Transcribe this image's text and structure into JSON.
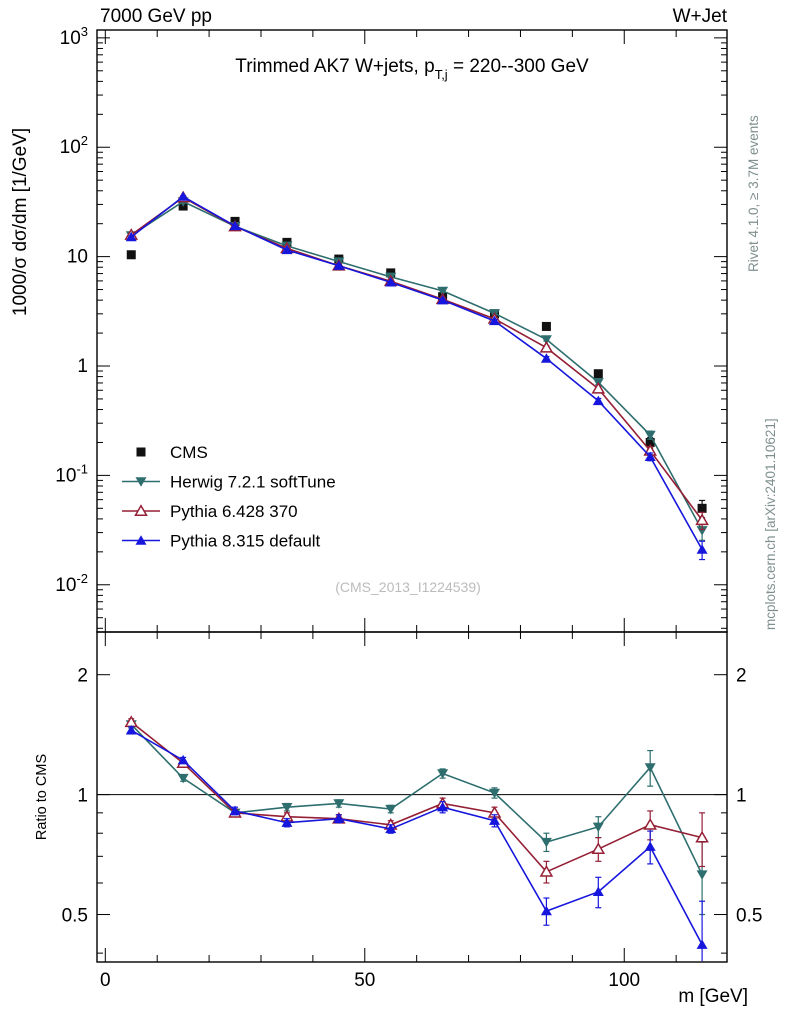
{
  "header": {
    "beam": "7000 GeV pp",
    "process": "W+Jet"
  },
  "side_labels": {
    "rivet": "Rivet 4.1.0, ≥ 3.7M events",
    "mcplots": "mcplots.cern.ch [arXiv:2401.10621]"
  },
  "watermark": "(CMS_2013_I1224539)",
  "chart_data": {
    "type": "line",
    "title": "Trimmed AK7 W+jets, p_{T,j} = 220--300 GeV",
    "title_parts": {
      "pre": "Trimmed AK7 W+jets, p",
      "sub": "T,j",
      "post": " = 220--300 GeV"
    },
    "xlabel": "m [GeV]",
    "ylabel": "1000/σ  dσ/dm [1/GeV]",
    "ratio_ylabel": "Ratio to CMS",
    "y_log": true,
    "ratio_log": true,
    "xlim": [
      -1.6,
      119.8
    ],
    "ylim": [
      0.0037,
      1180
    ],
    "ratio_ylim": [
      0.38,
      2.56
    ],
    "x_major_ticks": [
      0,
      50,
      100
    ],
    "x_minor_step": 10,
    "y_tick_exponents": [
      3,
      2,
      1,
      0,
      -1,
      -2
    ],
    "ratio_ticks": [
      2,
      1,
      0.5
    ],
    "ratio_minor_ticks": [
      0.4,
      0.6,
      0.7,
      0.8,
      0.9
    ],
    "x": [
      5,
      15,
      25,
      35,
      45,
      55,
      65,
      75,
      85,
      95,
      105,
      115
    ],
    "series": [
      {
        "name": "CMS",
        "color": "#111111",
        "marker": "square-filled",
        "line": false,
        "values": [
          10.4,
          29,
          21,
          13.5,
          9.5,
          7.1,
          4.3,
          3.0,
          2.3,
          0.85,
          0.2,
          0.05
        ],
        "yerr": [
          0.4,
          0.9,
          0.7,
          0.5,
          0.35,
          0.28,
          0.2,
          0.15,
          0.12,
          0.06,
          0.022,
          0.009
        ]
      },
      {
        "name": "Herwig 7.2.1 softTune",
        "color": "#2e6e6e",
        "marker": "triangle-down-filled",
        "line": true,
        "values": [
          15.6,
          31.9,
          18.9,
          12.55,
          9.02,
          6.53,
          4.86,
          3.03,
          1.75,
          0.71,
          0.234,
          0.0315
        ],
        "yerr": [
          0.3,
          0.5,
          0.3,
          0.2,
          0.16,
          0.12,
          0.1,
          0.08,
          0.06,
          0.035,
          0.02,
          0.006
        ],
        "ratio": [
          1.5,
          1.1,
          0.9,
          0.93,
          0.95,
          0.92,
          1.13,
          1.01,
          0.76,
          0.83,
          1.17,
          0.63
        ],
        "ratio_err": [
          0.03,
          0.02,
          0.02,
          0.02,
          0.02,
          0.02,
          0.03,
          0.03,
          0.04,
          0.05,
          0.12,
          0.13
        ]
      },
      {
        "name": "Pythia 6.428 370",
        "color": "#951f35",
        "marker": "triangle-up-open",
        "line": true,
        "values": [
          15.8,
          34.8,
          18.9,
          11.9,
          8.26,
          5.96,
          4.08,
          2.7,
          1.47,
          0.62,
          0.168,
          0.039
        ],
        "yerr": [
          0.3,
          0.5,
          0.3,
          0.2,
          0.15,
          0.12,
          0.1,
          0.08,
          0.06,
          0.03,
          0.015,
          0.007
        ],
        "ratio": [
          1.52,
          1.2,
          0.9,
          0.88,
          0.87,
          0.84,
          0.95,
          0.9,
          0.64,
          0.73,
          0.84,
          0.78
        ],
        "ratio_err": [
          0.03,
          0.02,
          0.02,
          0.02,
          0.02,
          0.02,
          0.03,
          0.03,
          0.04,
          0.05,
          0.07,
          0.12
        ]
      },
      {
        "name": "Pythia 8.315 default",
        "color": "#1616dc",
        "marker": "triangle-up-filled",
        "line": true,
        "values": [
          15.1,
          35.4,
          19.1,
          11.5,
          8.26,
          5.82,
          4.0,
          2.58,
          1.17,
          0.48,
          0.148,
          0.021
        ],
        "yerr": [
          0.3,
          0.5,
          0.3,
          0.2,
          0.15,
          0.12,
          0.1,
          0.08,
          0.05,
          0.025,
          0.012,
          0.004
        ],
        "ratio": [
          1.45,
          1.22,
          0.91,
          0.85,
          0.87,
          0.82,
          0.93,
          0.86,
          0.51,
          0.57,
          0.74,
          0.42
        ],
        "ratio_err": [
          0.03,
          0.02,
          0.02,
          0.02,
          0.02,
          0.02,
          0.03,
          0.03,
          0.04,
          0.05,
          0.07,
          0.12
        ]
      }
    ]
  }
}
